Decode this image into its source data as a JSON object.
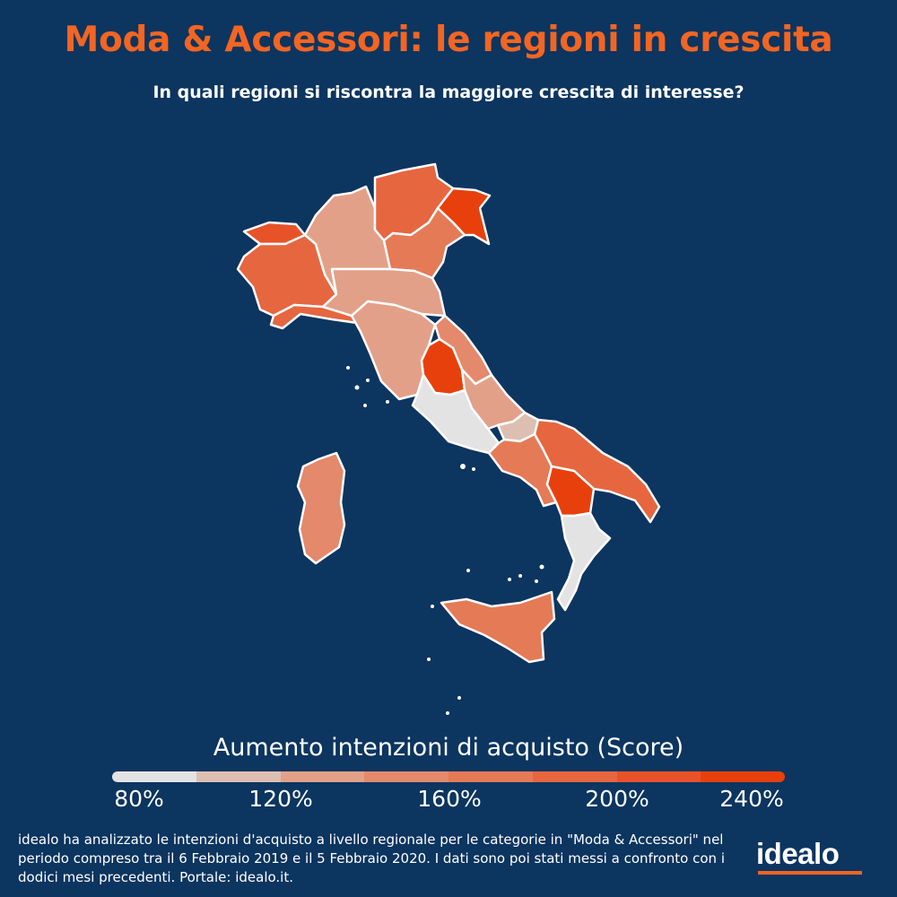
{
  "header": {
    "title": "Moda & Accessori: le regioni in crescita",
    "subtitle": "In quali regioni si riscontra la maggiore crescita di interesse?"
  },
  "colors": {
    "background": "#0c3560",
    "accent": "#f26522",
    "border": "#ffffff",
    "scale": [
      "#e3e3e3",
      "#ddbfb2",
      "#e3a088",
      "#e4896b",
      "#e57a57",
      "#e6663f",
      "#e85229",
      "#e8400d"
    ]
  },
  "regions": [
    {
      "id": "valle-d-aosta",
      "level": 6
    },
    {
      "id": "piemonte",
      "level": 5
    },
    {
      "id": "liguria",
      "level": 5
    },
    {
      "id": "lombardia",
      "level": 2
    },
    {
      "id": "trentino-alto-adige",
      "level": 5
    },
    {
      "id": "veneto",
      "level": 4
    },
    {
      "id": "friuli-venezia-giulia",
      "level": 7
    },
    {
      "id": "emilia-romagna",
      "level": 2
    },
    {
      "id": "toscana",
      "level": 2
    },
    {
      "id": "marche",
      "level": 3
    },
    {
      "id": "umbria",
      "level": 7
    },
    {
      "id": "lazio",
      "level": 0
    },
    {
      "id": "abruzzo",
      "level": 2
    },
    {
      "id": "molise",
      "level": 1
    },
    {
      "id": "campania",
      "level": 4
    },
    {
      "id": "puglia",
      "level": 5
    },
    {
      "id": "basilicata",
      "level": 7
    },
    {
      "id": "calabria",
      "level": 0
    },
    {
      "id": "sicilia",
      "level": 4
    },
    {
      "id": "sardegna",
      "level": 3
    }
  ],
  "legend": {
    "title": "Aumento intenzioni di acquisto (Score)",
    "ticks": [
      "80%",
      "120%",
      "160%",
      "200%",
      "240%"
    ],
    "min": 80,
    "max": 240
  },
  "footer": {
    "note": "idealo ha analizzato le intenzioni d'acquisto a livello regionale per le categorie in \"Moda & Accessori\" nel periodo compreso tra il 6 Febbraio 2019 e il 5 Febbraio 2020. I dati sono poi stati messi a confronto con i dodici mesi precedenti. Portale: idealo.it.",
    "logo_text": "idealo"
  }
}
